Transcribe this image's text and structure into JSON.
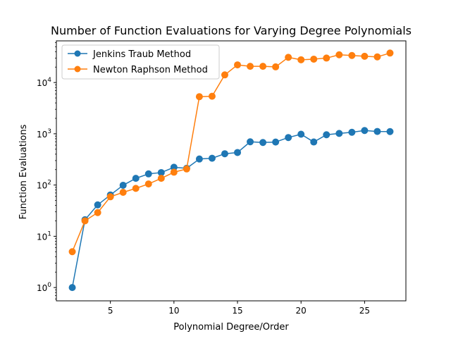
{
  "chart_data": {
    "type": "line",
    "title": "Number of Function Evaluations for Varying Degree Polynomials",
    "xlabel": "Polynomial Degree/Order",
    "ylabel": "Function Evaluations",
    "xlim": [
      0.75,
      28.25
    ],
    "ylim": [
      0.55,
      65000
    ],
    "yscale": "log",
    "grid": false,
    "legend_position": "top-left",
    "x_ticks": [
      5,
      10,
      15,
      20,
      25
    ],
    "y_ticks": [
      1,
      10,
      100,
      1000,
      10000
    ],
    "x": [
      2,
      3,
      4,
      5,
      6,
      7,
      8,
      9,
      10,
      11,
      12,
      13,
      14,
      15,
      16,
      17,
      18,
      19,
      20,
      21,
      22,
      23,
      24,
      25,
      26,
      27
    ],
    "series": [
      {
        "name": "Jenkins Traub Method",
        "color": "#1f77b4",
        "values": [
          1,
          21,
          41,
          64,
          99,
          135,
          165,
          175,
          222,
          212,
          322,
          333,
          408,
          431,
          698,
          676,
          690,
          845,
          981,
          691,
          958,
          1016,
          1070,
          1157,
          1110,
          1104
        ]
      },
      {
        "name": "Newton Raphson Method",
        "color": "#ff7f0e",
        "values": [
          5,
          20,
          29,
          59,
          72,
          86,
          105,
          135,
          178,
          206,
          5300,
          5400,
          14100,
          22100,
          20700,
          20700,
          20200,
          31000,
          27800,
          28600,
          30000,
          34800,
          33700,
          32500,
          31700,
          37600
        ]
      }
    ]
  }
}
